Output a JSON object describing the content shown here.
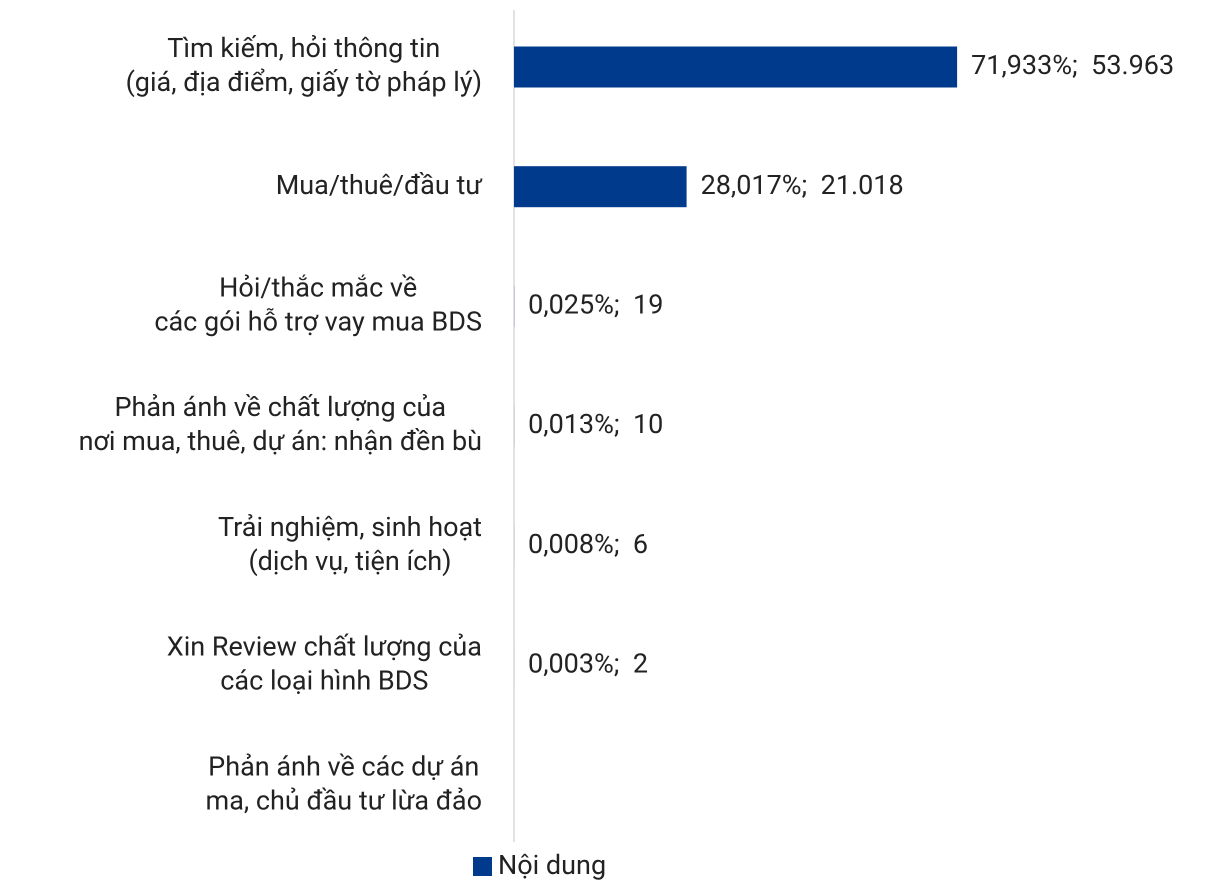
{
  "chart_data": {
    "type": "hbar",
    "categories": [
      [
        "Tìm kiếm, hỏi thông tin",
        "(giá, địa điểm, giấy tờ pháp lý)"
      ],
      [
        "Mua/thuê/đầu tư"
      ],
      [
        "Hỏi/thắc mắc về",
        "các gói hỗ trợ vay mua BDS"
      ],
      [
        "Phản ánh về chất lượng của",
        "nơi mua, thuê, dự án: nhận đền bù"
      ],
      [
        "Trải nghiệm, sinh hoạt",
        "(dịch vụ, tiện ích)"
      ],
      [
        "Xin Review chất lượng của",
        "các loại hình BDS"
      ],
      [
        "Phản ánh về các dự án",
        "ma, chủ đầu tư lừa đảo"
      ]
    ],
    "series": [
      {
        "name": "Nội dung",
        "color": "#003a8c",
        "values": [
          71.933,
          28.017,
          0.025,
          0.013,
          0.008,
          0.003,
          null
        ],
        "value_labels": [
          "71,933%;  53.963",
          "28,017%;  21.018",
          "0,025%;  19",
          "0,013%;  10",
          "0,008%;  6",
          "0,003%;  2",
          null
        ]
      }
    ],
    "xlim": [
      0,
      100
    ],
    "legend": "bottom"
  }
}
